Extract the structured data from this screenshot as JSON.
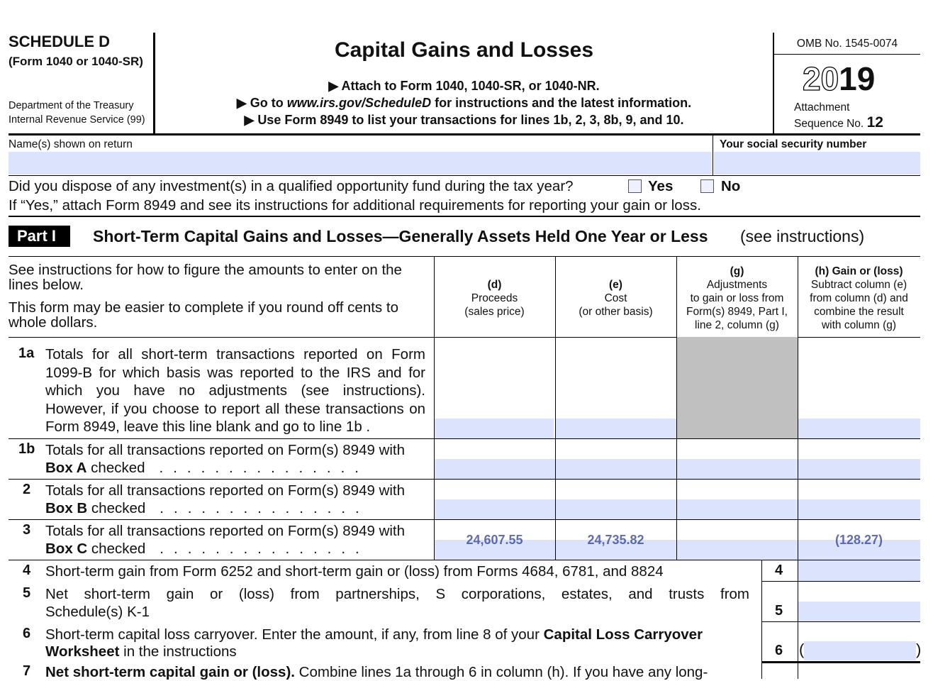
{
  "header": {
    "schedule": "SCHEDULE D",
    "form_ref": "(Form 1040 or 1040-SR)",
    "dept1": "Department of the Treasury",
    "dept2": "Internal Revenue Service (99)",
    "title": "Capital Gains and Losses",
    "instr1": "▶ Attach to Form 1040, 1040-SR, or 1040-NR.",
    "instr2_pre": "▶ Go to ",
    "instr2_url": "www.irs.gov/ScheduleD",
    "instr2_post": " for instructions and the latest information.",
    "instr3": "▶ Use Form 8949 to list your transactions for lines 1b, 2, 3, 8b, 9, and 10.",
    "omb": "OMB No. 1545-0074",
    "year_outline": "20",
    "year_bold": "19",
    "attachment": "Attachment",
    "sequence": "Sequence No.",
    "sequence_no": "12"
  },
  "names_label": "Name(s) shown on return",
  "ssn_label": "Your social security number",
  "question": "Did you dispose of any investment(s) in a qualified opportunity fund during the tax year?",
  "yes": "Yes",
  "no": "No",
  "question_note": "If “Yes,” attach Form 8949 and see its instructions for additional requirements for reporting your gain or loss.",
  "part": {
    "badge": "Part I",
    "title": "Short-Term Capital Gains and Losses—Generally Assets Held One Year or Less",
    "note": "(see instructions)"
  },
  "intro1": "See instructions for how to figure the amounts to enter on the lines below.",
  "intro2": "This form may be easier to complete if you round off cents to whole dollars.",
  "columns": {
    "d": [
      "(d)",
      "Proceeds",
      "(sales price)"
    ],
    "e": [
      "(e)",
      "Cost",
      "(or other basis)"
    ],
    "g": [
      "(g)",
      "Adjustments",
      "to gain or loss from",
      "Form(s) 8949, Part I,",
      "line 2, column (g)"
    ],
    "h": [
      "(h) Gain or (loss)",
      "Subtract column (e)",
      "from column (d) and",
      "combine the result",
      "with column (g)"
    ]
  },
  "lines": {
    "l1a": {
      "num": "1a",
      "text": "Totals for all short-term transactions reported on Form 1099-B for which basis was reported to the IRS and for which you have no adjustments (see instructions). However, if you choose to report all these transactions on Form 8949, leave this line blank and go to line 1b ."
    },
    "l1b": {
      "num": "1b",
      "text1": "Totals for all transactions reported on Form(s) 8949 with",
      "bold": "Box A",
      "text2": " checked"
    },
    "l2": {
      "num": "2",
      "text1": "Totals for all transactions reported on Form(s) 8949 with",
      "bold": "Box B",
      "text2": " checked"
    },
    "l3": {
      "num": "3",
      "text1": "Totals for all transactions reported on Form(s) 8949 with",
      "bold": "Box C",
      "text2": " checked",
      "d": "24,607.55",
      "e": "24,735.82",
      "h": "(128.27)"
    },
    "l4": {
      "num": "4",
      "text": "Short-term gain from Form 6252 and short-term gain or (loss) from Forms 4684, 6781, and 8824"
    },
    "l5": {
      "num": "5",
      "text1": "Net short-term gain or (loss) from partnerships, S corporations, estates, and trusts from",
      "text2": "Schedule(s) K-1"
    },
    "l6": {
      "num": "6",
      "text1a": "Short-term capital loss carryover. Enter the amount, if any, from line 8 of your ",
      "text1b": "Capital Loss Carryover",
      "text2a": "Worksheet",
      "text2b": " in the instructions"
    },
    "l7": {
      "num": "7",
      "bold": "Net short-term capital gain or (loss).",
      "text": " Combine lines 1a through 6 in column (h). If you have any long-"
    }
  },
  "colors": {
    "field": "#dce3fd",
    "shaded": "#c0c0c0"
  }
}
